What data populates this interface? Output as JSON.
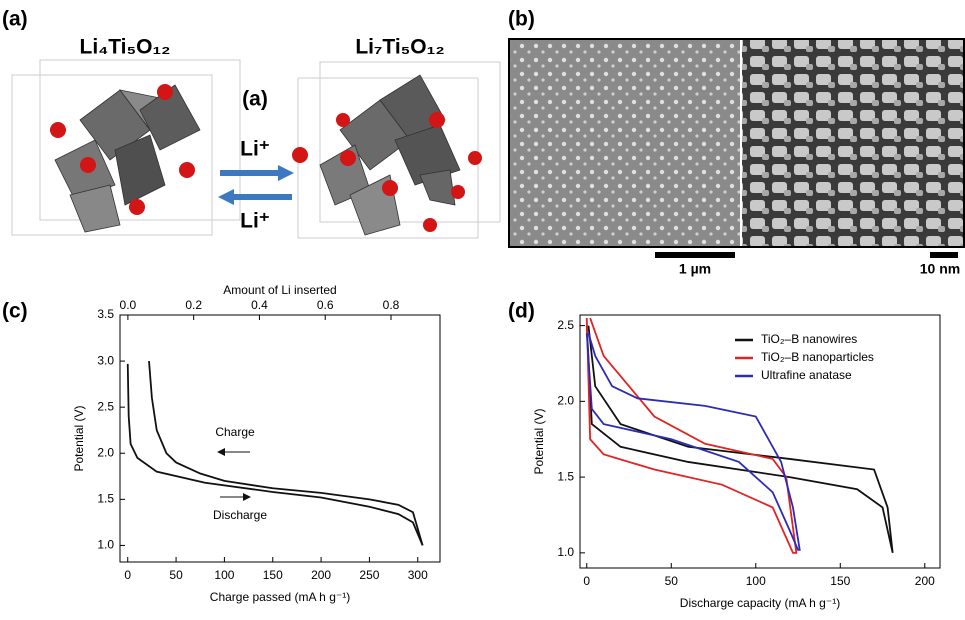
{
  "panels": {
    "a": {
      "label": "(a)",
      "left_formula": "Li₄Ti₅O₁₂",
      "center_label": "(a)",
      "right_formula": "Li₇Ti₅O₁₂",
      "ion_top": "Li⁺",
      "ion_bottom": "Li⁺"
    },
    "b": {
      "label": "(b)",
      "scale_left": "1 µm",
      "scale_right": "10 nm"
    },
    "c": {
      "label": "(c)"
    },
    "d": {
      "label": "(d)"
    }
  },
  "chart_data": [
    {
      "type": "line",
      "xlabel": "Charge passed (mA h g⁻¹)",
      "ylabel": "Potential (V)",
      "x2label": "Amount of Li inserted",
      "xlim": [
        -8,
        323
      ],
      "ylim": [
        0.82,
        3.5
      ],
      "x2lim": [
        -0.024,
        0.949
      ],
      "xticks": [
        0,
        50,
        100,
        150,
        200,
        250,
        300
      ],
      "yticks": [
        {
          "value": 1,
          "label": "1.0"
        },
        1.5,
        {
          "value": 2,
          "label": "2.0"
        },
        2.5,
        {
          "value": 3,
          "label": "3.0"
        },
        3.5
      ],
      "x2ticks": [
        {
          "value": 0,
          "label": "0.0"
        },
        0.2,
        0.4,
        0.6,
        0.8
      ],
      "annotations": [
        "Charge",
        "Discharge"
      ],
      "series": [
        {
          "color": "#111111",
          "x": [
            22,
            25,
            30,
            40,
            50,
            75,
            100,
            150,
            200,
            250,
            280,
            295,
            305
          ],
          "y": [
            3.0,
            2.6,
            2.25,
            2.0,
            1.9,
            1.78,
            1.7,
            1.62,
            1.57,
            1.5,
            1.44,
            1.36,
            1.0
          ]
        },
        {
          "color": "#111111",
          "x": [
            0,
            1,
            3,
            10,
            30,
            80,
            150,
            200,
            250,
            280,
            295,
            305
          ],
          "y": [
            2.97,
            2.4,
            2.1,
            1.95,
            1.8,
            1.68,
            1.58,
            1.52,
            1.42,
            1.34,
            1.25,
            1.0
          ]
        }
      ]
    },
    {
      "type": "line",
      "xlabel": "Discharge capacity (mA h g⁻¹)",
      "ylabel": "Potential (V)",
      "xlim": [
        -4,
        209
      ],
      "ylim": [
        0.9,
        2.57
      ],
      "xticks": [
        0,
        50,
        100,
        150,
        200
      ],
      "yticks": [
        {
          "value": 1,
          "label": "1.0"
        },
        1.5,
        {
          "value": 2,
          "label": "2.0"
        },
        2.5
      ],
      "series": [
        {
          "name": "TiO₂–B nanowires",
          "color": "#111111",
          "x": [
            0,
            3,
            20,
            60,
            120,
            160,
            175,
            181,
            178,
            170,
            120,
            60,
            20,
            5,
            1
          ],
          "y": [
            2.5,
            1.85,
            1.7,
            1.6,
            1.5,
            1.42,
            1.3,
            1.0,
            1.3,
            1.55,
            1.62,
            1.7,
            1.85,
            2.1,
            2.5
          ]
        },
        {
          "name": "TiO₂–B nanoparticles",
          "color": "#e32222",
          "x": [
            0,
            2,
            10,
            40,
            80,
            110,
            120,
            122,
            124,
            118,
            110,
            70,
            40,
            25,
            10,
            2
          ],
          "y": [
            2.55,
            1.75,
            1.65,
            1.55,
            1.45,
            1.3,
            1.05,
            1.0,
            1.0,
            1.5,
            1.62,
            1.72,
            1.9,
            2.1,
            2.3,
            2.55
          ]
        },
        {
          "name": "Ultrafine anatase",
          "color": "#2b2bb8",
          "x": [
            0,
            3,
            10,
            50,
            90,
            110,
            120,
            125,
            126,
            122,
            115,
            100,
            70,
            30,
            15,
            5,
            1
          ],
          "y": [
            2.45,
            1.95,
            1.85,
            1.75,
            1.6,
            1.4,
            1.15,
            1.02,
            1.02,
            1.3,
            1.6,
            1.9,
            1.97,
            2.02,
            2.1,
            2.3,
            2.45
          ]
        }
      ]
    }
  ]
}
